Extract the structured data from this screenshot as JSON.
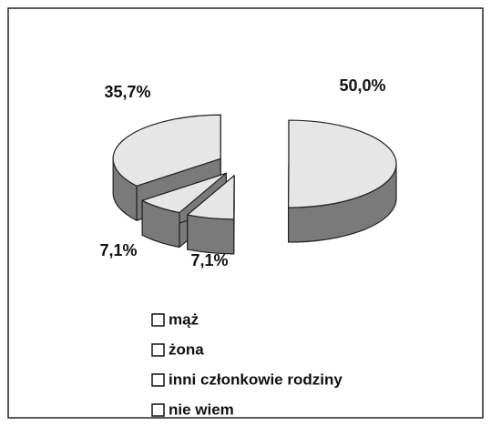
{
  "chart_data": {
    "type": "pie3d",
    "categories": [
      "mąż",
      "żona",
      "inni członkowie rodziny",
      "nie wiem"
    ],
    "values": [
      50,
      7.1,
      7.1,
      35.7
    ],
    "value_labels": [
      "50,0%",
      "7,1%",
      "7,1%",
      "35,7%"
    ],
    "top_color": "#e6e6e6",
    "side_color": "#7a7a7a",
    "legend": "bottom"
  }
}
